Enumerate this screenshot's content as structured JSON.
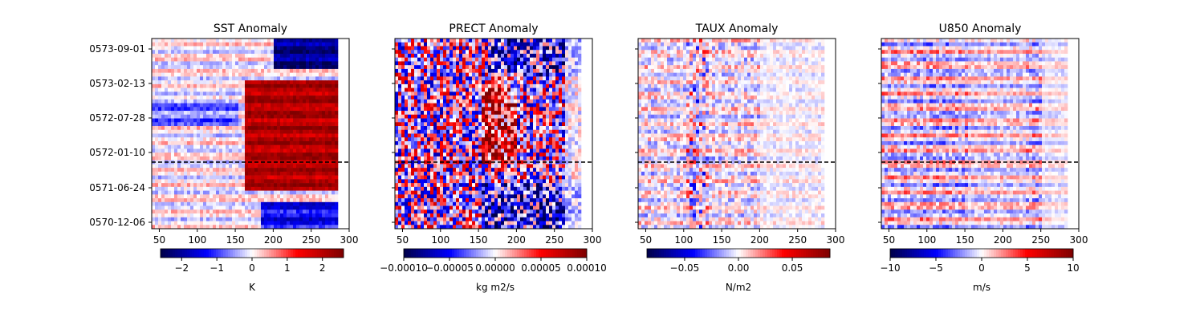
{
  "chart_data": [
    {
      "type": "heatmap",
      "title": "SST Anomaly",
      "x_ticks": [
        50,
        100,
        150,
        200,
        250,
        300
      ],
      "xlim": [
        40,
        300
      ],
      "y_tick_labels": [
        "0573-09-01",
        "0573-02-13",
        "0572-07-28",
        "0572-01-10",
        "0571-06-24",
        "0570-12-06"
      ],
      "dashed_line_date": "0571-10-30",
      "data_extent_x": [
        40,
        282
      ],
      "colorbar": {
        "label": "K",
        "range": [
          -2.6,
          2.6
        ],
        "ticks": [
          -2,
          -1,
          0,
          1,
          2
        ],
        "tick_labels": [
          "−2",
          "−1",
          "0",
          "1",
          "2"
        ],
        "colormap": "seismic"
      }
    },
    {
      "type": "heatmap",
      "title": "PRECT Anomaly",
      "x_ticks": [
        50,
        100,
        150,
        200,
        250,
        300
      ],
      "xlim": [
        40,
        300
      ],
      "y_tick_labels": [
        "0573-09-01",
        "0573-02-13",
        "0572-07-28",
        "0572-01-10",
        "0571-06-24",
        "0570-12-06"
      ],
      "dashed_line_date": "0571-10-30",
      "data_extent_x": [
        40,
        285
      ],
      "colorbar": {
        "label": "kg m2/s",
        "range": [
          -0.0001,
          0.0001
        ],
        "ticks": [
          -0.0001,
          -5e-05,
          0,
          5e-05,
          0.0001
        ],
        "tick_labels": [
          "−0.00010",
          "−0.00005",
          "0.00000",
          "0.00005",
          "0.00010"
        ],
        "colormap": "seismic"
      }
    },
    {
      "type": "heatmap",
      "title": "TAUX Anomaly",
      "x_ticks": [
        50,
        100,
        150,
        200,
        250,
        300
      ],
      "xlim": [
        40,
        300
      ],
      "y_tick_labels": [
        "0573-09-01",
        "0573-02-13",
        "0572-07-28",
        "0572-01-10",
        "0571-06-24",
        "0570-12-06"
      ],
      "dashed_line_date": "0571-10-30",
      "data_extent_x": [
        40,
        282
      ],
      "colorbar": {
        "label": "N/m2",
        "range": [
          -0.085,
          0.085
        ],
        "ticks": [
          -0.05,
          0,
          0.05
        ],
        "tick_labels": [
          "−0.05",
          "0.00",
          "0.05"
        ],
        "colormap": "seismic"
      }
    },
    {
      "type": "heatmap",
      "title": "U850 Anomaly",
      "x_ticks": [
        50,
        100,
        150,
        200,
        250,
        300
      ],
      "xlim": [
        40,
        300
      ],
      "y_tick_labels": [
        "0573-09-01",
        "0573-02-13",
        "0572-07-28",
        "0572-01-10",
        "0571-06-24",
        "0570-12-06"
      ],
      "dashed_line_date": "0571-10-30",
      "data_extent_x": [
        40,
        282
      ],
      "colorbar": {
        "label": "m/s",
        "range": [
          -10,
          10
        ],
        "ticks": [
          -10,
          -5,
          0,
          5,
          10
        ],
        "tick_labels": [
          "−10",
          "−5",
          "0",
          "5",
          "10"
        ],
        "colormap": "seismic"
      }
    }
  ]
}
